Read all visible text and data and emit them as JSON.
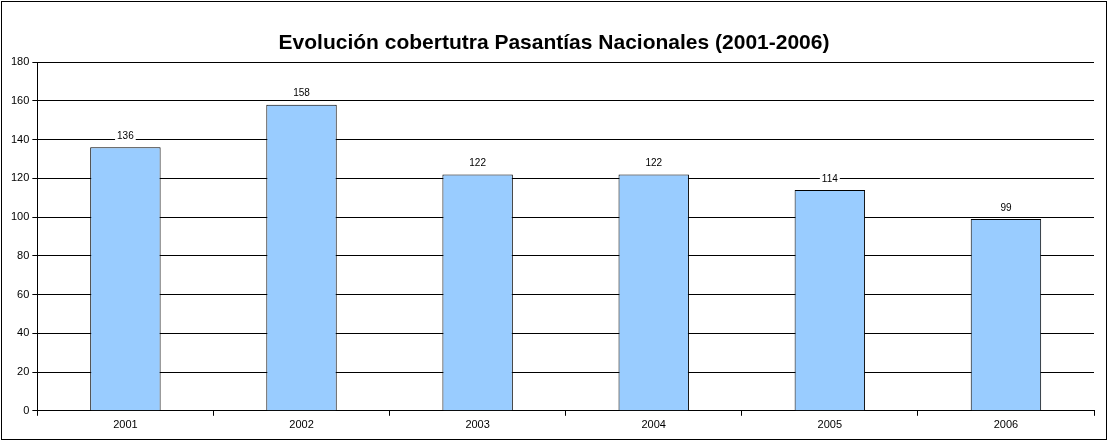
{
  "chart_data": {
    "type": "bar",
    "title": "Evolución cobertutra Pasantías Nacionales (2001-2006)",
    "categories": [
      "2001",
      "2002",
      "2003",
      "2004",
      "2005",
      "2006"
    ],
    "values": [
      136,
      158,
      122,
      122,
      114,
      99
    ],
    "color": "#99ccff",
    "ylim": [
      0,
      180
    ],
    "yticks": [
      0,
      20,
      40,
      60,
      80,
      100,
      120,
      140,
      160,
      180
    ],
    "grid": "y",
    "data_labels": true
  }
}
